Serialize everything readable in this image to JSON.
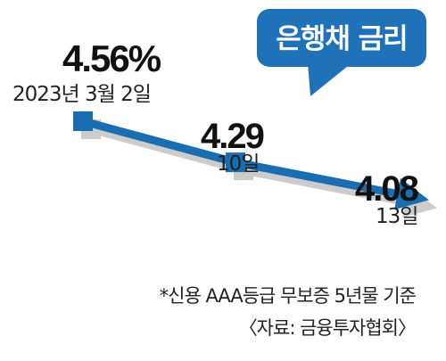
{
  "chart_data": {
    "type": "line",
    "title": "은행채 금리",
    "x": [
      "2023년 3월 2일",
      "10일",
      "13일"
    ],
    "series": [
      {
        "values": [
          4.56,
          4.29,
          4.08
        ]
      }
    ],
    "value_labels": [
      "4.56%",
      "4.29",
      "4.08"
    ],
    "grid": false,
    "legend": "none"
  },
  "notes": {
    "criteria": "*신용 AAA등급 무보증 5년물 기준",
    "source": "〈자료: 금융투자협회〉"
  },
  "colors": {
    "line": "#1a6db0",
    "title_box": "#1f72b8",
    "title_text": "#ffffff",
    "shadow": "#cccccc"
  }
}
